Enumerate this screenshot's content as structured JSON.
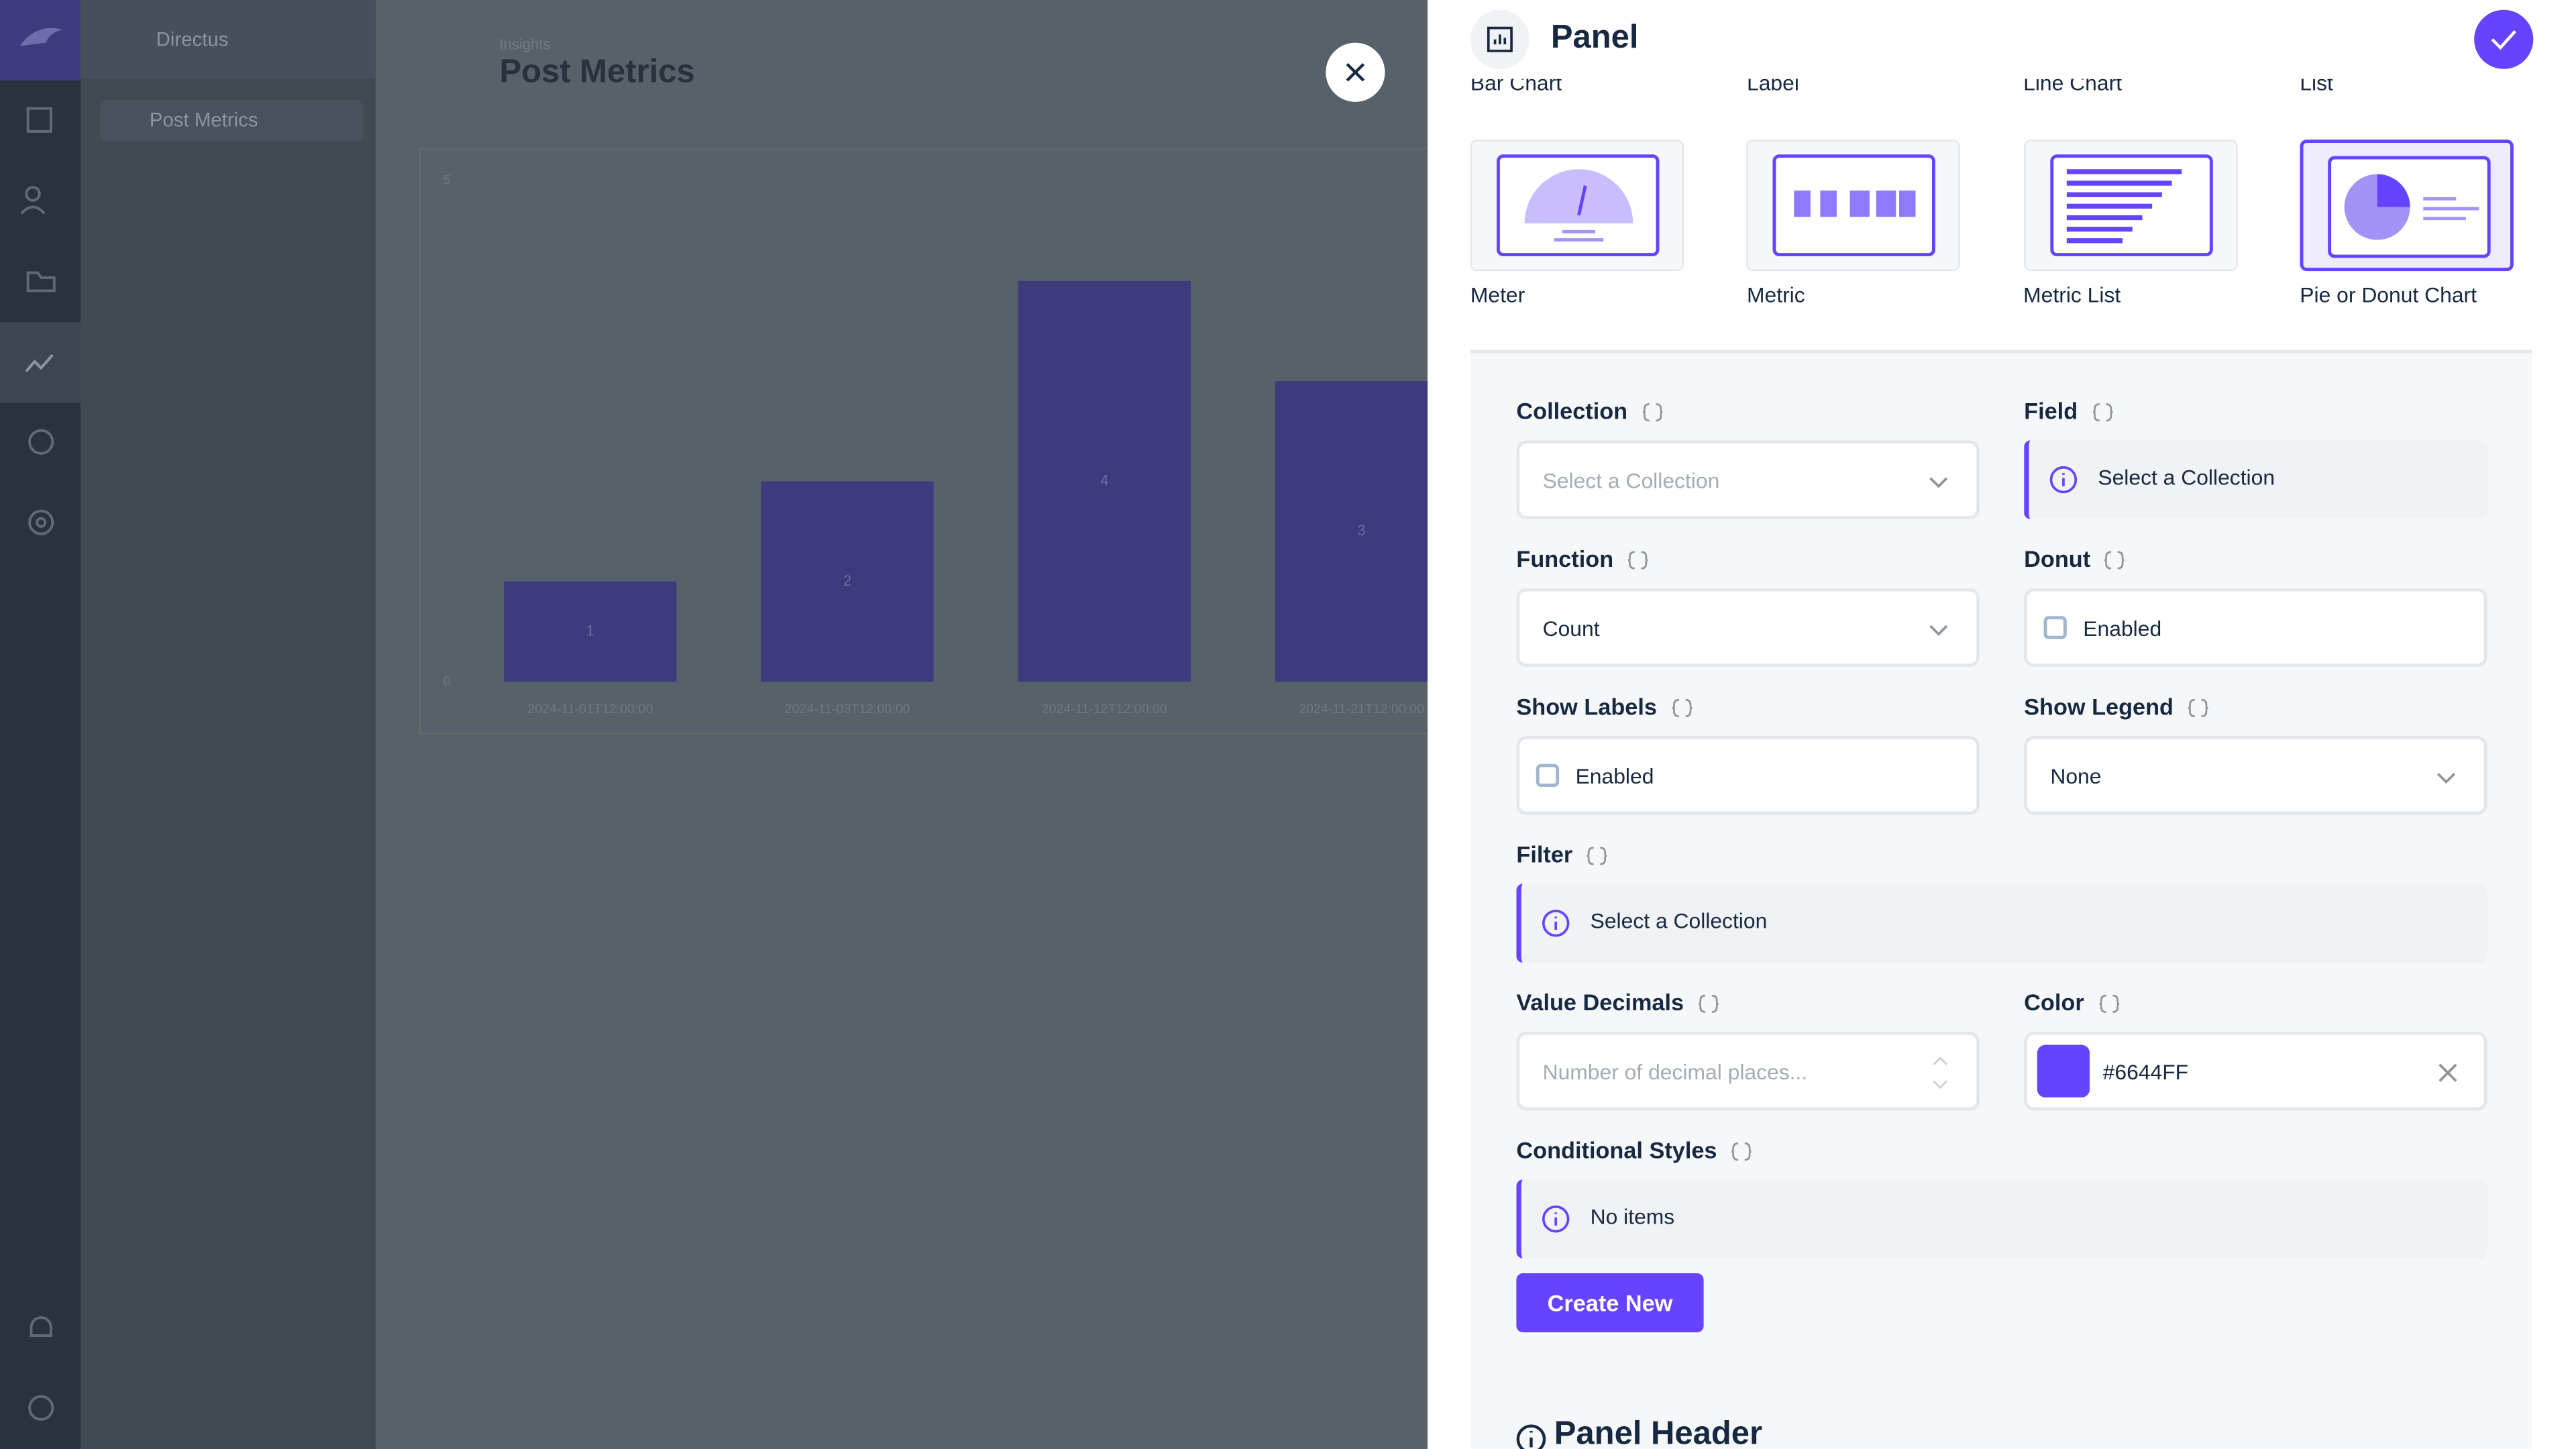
{
  "sidebar": {
    "app_name": "Directus",
    "nav_item": "Post Metrics"
  },
  "header": {
    "breadcrumb": "Insights",
    "title": "Post Metrics"
  },
  "chart": {
    "type": "bar",
    "categories": [
      "2024-11-01T12:00:00",
      "2024-11-03T12:00:00",
      "2024-11-12T12:00:00",
      "2024-11-21T12:00:00"
    ],
    "values": [
      1,
      2,
      4,
      3
    ],
    "color": "#3d3a7d",
    "ylim": [
      0,
      5
    ],
    "yticks": [
      0,
      5
    ]
  },
  "drawer": {
    "title": "Panel",
    "types_top": [
      "Bar Chart",
      "Label",
      "Line Chart",
      "List"
    ],
    "types": [
      "Meter",
      "Metric",
      "Metric List",
      "Pie or Donut Chart"
    ],
    "selected_type": 3,
    "fields": [
      {
        "label": "Collection",
        "kind": "select",
        "text": "Select a Collection",
        "placeholder": true
      },
      {
        "label": "Field",
        "kind": "notice",
        "text": "Select a Collection"
      },
      {
        "label": "Function",
        "kind": "select",
        "text": "Count"
      },
      {
        "label": "Donut",
        "kind": "checkbox",
        "text": "Enabled"
      },
      {
        "label": "Show Labels",
        "kind": "checkbox",
        "text": "Enabled"
      },
      {
        "label": "Show Legend",
        "kind": "select",
        "text": "None"
      },
      {
        "label": "Filter",
        "kind": "notice",
        "text": "Select a Collection"
      },
      {
        "label": "Value Decimals",
        "kind": "number",
        "text": "Number of decimal places...",
        "placeholder": true
      },
      {
        "label": "Color",
        "kind": "color",
        "text": "#6644FF"
      },
      {
        "label": "Conditional Styles",
        "kind": "notice",
        "text": "No items"
      }
    ],
    "button": "Create New",
    "section": "Panel Header"
  }
}
